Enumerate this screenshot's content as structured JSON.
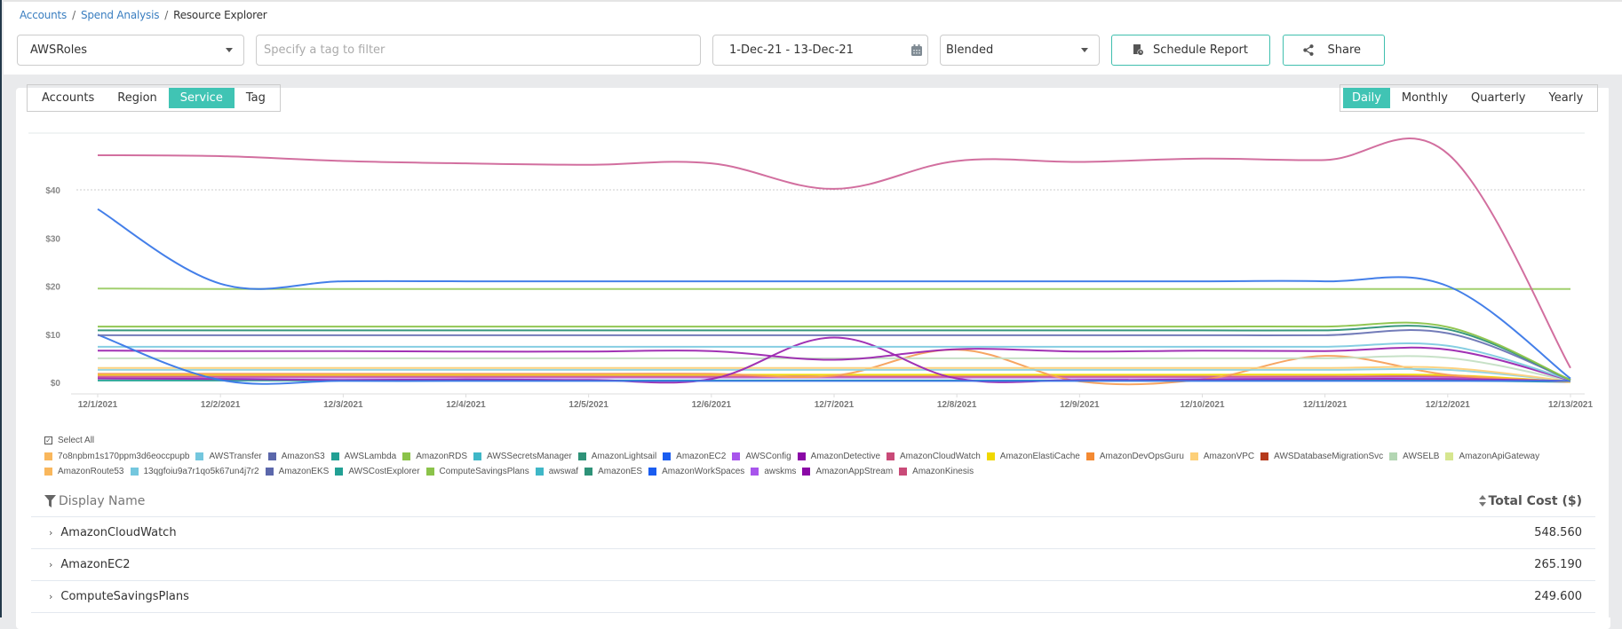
{
  "breadcrumb": {
    "items": [
      "Accounts",
      "Spend Analysis"
    ],
    "current": "Resource Explorer",
    "separator": "/"
  },
  "toolbar": {
    "role_select": "AWSRoles",
    "tag_filter_placeholder": "Specify a tag to filter",
    "date_range": "1-Dec-21 - 13-Dec-21",
    "cost_type_select": "Blended",
    "schedule_report_label": "Schedule Report",
    "share_label": "Share"
  },
  "group_by_tabs": {
    "items": [
      "Accounts",
      "Region",
      "Service",
      "Tag"
    ],
    "active": "Service"
  },
  "granularity_tabs": {
    "items": [
      "Daily",
      "Monthly",
      "Quarterly",
      "Yearly"
    ],
    "active": "Daily"
  },
  "legend": {
    "select_all_label": "Select All",
    "row1": [
      {
        "name": "7o8npbm1s170ppm3d6eoccpupb",
        "color": "#f9b75c"
      },
      {
        "name": "AWSTransfer",
        "color": "#74c7de"
      },
      {
        "name": "AmazonS3",
        "color": "#5b67ab"
      },
      {
        "name": "AWSLambda",
        "color": "#22a094"
      },
      {
        "name": "AmazonRDS",
        "color": "#8bc34a"
      },
      {
        "name": "AWSSecretsManager",
        "color": "#3fb7c7"
      },
      {
        "name": "AmazonLightsail",
        "color": "#2e9278"
      },
      {
        "name": "AmazonEC2",
        "color": "#1a5df0"
      },
      {
        "name": "AWSConfig",
        "color": "#a855ec"
      },
      {
        "name": "AmazonDetective",
        "color": "#8a08a6"
      },
      {
        "name": "AmazonCloudWatch",
        "color": "#c94a78"
      },
      {
        "name": "AmazonElastiCache",
        "color": "#f0d800"
      },
      {
        "name": "AmazonDevOpsGuru",
        "color": "#f48a32"
      },
      {
        "name": "AmazonVPC",
        "color": "#fdd079"
      },
      {
        "name": "AWSDatabaseMigrationSvc",
        "color": "#b53a1c"
      },
      {
        "name": "AWSELB",
        "color": "#b3d6b3"
      },
      {
        "name": "AmazonApiGateway",
        "color": "#d6e68f"
      }
    ],
    "row2": [
      {
        "name": "AmazonRoute53",
        "color": "#f9b75c"
      },
      {
        "name": "13qgfoiu9a7r1qo5k67un4j7r2",
        "color": "#74c7de"
      },
      {
        "name": "AmazonEKS",
        "color": "#5b67ab"
      },
      {
        "name": "AWSCostExplorer",
        "color": "#22a094"
      },
      {
        "name": "ComputeSavingsPlans",
        "color": "#8bc34a"
      },
      {
        "name": "awswaf",
        "color": "#3fb7c7"
      },
      {
        "name": "AmazonES",
        "color": "#2e9278"
      },
      {
        "name": "AmazonWorkSpaces",
        "color": "#1a5df0"
      },
      {
        "name": "awskms",
        "color": "#a855ec"
      },
      {
        "name": "AmazonAppStream",
        "color": "#8a08a6"
      },
      {
        "name": "AmazonKinesis",
        "color": "#c94a78"
      }
    ]
  },
  "table": {
    "col_name": "Display Name",
    "col_cost": "Total Cost ($)",
    "rows": [
      {
        "name": "AmazonCloudWatch",
        "cost": "548.560"
      },
      {
        "name": "AmazonEC2",
        "cost": "265.190"
      },
      {
        "name": "ComputeSavingsPlans",
        "cost": "249.600"
      }
    ]
  },
  "chart_data": {
    "type": "line",
    "title": "",
    "xlabel": "",
    "ylabel": "",
    "x": [
      "12/1/2021",
      "12/2/2021",
      "12/3/2021",
      "12/4/2021",
      "12/5/2021",
      "12/6/2021",
      "12/7/2021",
      "12/8/2021",
      "12/9/2021",
      "12/10/2021",
      "12/11/2021",
      "12/12/2021",
      "12/13/2021"
    ],
    "yticks": [
      "$0",
      "$10",
      "$20",
      "$30",
      "$40"
    ],
    "ylim": [
      -2,
      50
    ],
    "grid": "dotted line at $40 only",
    "legend_position": "bottom",
    "series": [
      {
        "name": "AmazonCloudWatch",
        "color": "#d0679a",
        "values": [
          47.2,
          47.0,
          46.0,
          45.5,
          45.2,
          45.5,
          40.2,
          46.0,
          45.8,
          46.5,
          46.2,
          47.5,
          3.0
        ]
      },
      {
        "name": "AmazonEC2",
        "color": "#3a78e8",
        "values": [
          36.0,
          20.5,
          21.0,
          21.0,
          21.0,
          21.0,
          21.0,
          21.0,
          21.0,
          21.0,
          21.0,
          20.0,
          0.8
        ]
      },
      {
        "name": "ComputeSavingsPlans",
        "color": "#9ccc65",
        "values": [
          19.5,
          19.4,
          19.4,
          19.4,
          19.4,
          19.4,
          19.4,
          19.4,
          19.4,
          19.4,
          19.4,
          19.4,
          19.4
        ]
      },
      {
        "name": "AmazonRDS",
        "color": "#8bc34a",
        "values": [
          11.6,
          11.6,
          11.6,
          11.6,
          11.6,
          11.6,
          11.6,
          11.6,
          11.6,
          11.6,
          11.6,
          11.5,
          0.5
        ]
      },
      {
        "name": "AmazonLightsail",
        "color": "#2e9278",
        "values": [
          10.8,
          10.8,
          10.8,
          10.8,
          10.8,
          10.8,
          10.8,
          10.8,
          10.8,
          10.8,
          10.8,
          11.0,
          0.5
        ]
      },
      {
        "name": "AmazonS3",
        "color": "#6b75b5",
        "values": [
          9.8,
          9.8,
          9.8,
          9.8,
          9.8,
          9.8,
          9.8,
          9.8,
          9.8,
          9.8,
          9.8,
          10.2,
          0.5
        ]
      },
      {
        "name": "AmazonWorkSpaces",
        "color": "#3a78e8",
        "values": [
          9.9,
          0.5,
          0.3,
          0.3,
          0.3,
          0.3,
          0.3,
          0.3,
          0.3,
          0.3,
          0.3,
          0.3,
          0.3
        ]
      },
      {
        "name": "AWSTransfer",
        "color": "#7fcbe0",
        "values": [
          7.4,
          7.4,
          7.4,
          7.4,
          7.4,
          7.4,
          7.4,
          7.4,
          7.4,
          7.4,
          7.4,
          7.6,
          0.5
        ]
      },
      {
        "name": "AmazonDetective",
        "color": "#9c27b0",
        "values": [
          6.6,
          6.5,
          6.5,
          6.4,
          6.4,
          6.5,
          4.7,
          6.9,
          6.4,
          6.6,
          6.5,
          6.8,
          0.4
        ]
      },
      {
        "name": "AmazonAppStream",
        "color": "#9c27b0",
        "values": [
          0.8,
          0.7,
          0.5,
          0.6,
          0.5,
          0.7,
          9.3,
          0.8,
          0.5,
          0.6,
          0.7,
          0.7,
          0.3
        ]
      },
      {
        "name": "AWSELB",
        "color": "#c4dfc4",
        "values": [
          5.0,
          5.0,
          5.0,
          5.0,
          5.0,
          5.0,
          5.0,
          5.0,
          5.0,
          5.0,
          5.0,
          5.1,
          0.3
        ]
      },
      {
        "name": "AmazonVPC",
        "color": "#fdd079",
        "values": [
          3.0,
          3.0,
          3.0,
          3.0,
          3.0,
          3.0,
          3.0,
          3.0,
          3.0,
          3.0,
          3.0,
          3.0,
          0.2
        ]
      },
      {
        "name": "awswaf",
        "color": "#8fd3e0",
        "values": [
          2.6,
          2.6,
          2.6,
          2.6,
          2.6,
          2.6,
          2.6,
          2.6,
          2.6,
          2.6,
          2.6,
          2.6,
          0.2
        ]
      },
      {
        "name": "AmazonDevOpsGuru",
        "color": "#f7a05a",
        "values": [
          1.8,
          1.8,
          1.8,
          1.8,
          1.8,
          1.8,
          1.4,
          6.8,
          0.2,
          0.6,
          5.5,
          1.6,
          0.2
        ]
      },
      {
        "name": "AmazonElastiCache",
        "color": "#f0d800",
        "values": [
          1.6,
          1.6,
          1.6,
          1.6,
          1.6,
          1.6,
          1.6,
          1.6,
          1.6,
          1.6,
          1.6,
          1.5,
          0.1
        ]
      },
      {
        "name": "AmazonKinesis",
        "color": "#d45a8a",
        "values": [
          1.2,
          1.2,
          1.2,
          1.2,
          1.2,
          1.2,
          1.2,
          1.2,
          1.2,
          1.2,
          1.2,
          1.2,
          0.1
        ]
      },
      {
        "name": "AWSConfig",
        "color": "#b572ef",
        "values": [
          1.0,
          1.0,
          1.0,
          1.0,
          1.0,
          1.0,
          1.0,
          1.0,
          1.0,
          1.0,
          1.0,
          1.0,
          0.1
        ]
      },
      {
        "name": "AWSLambda",
        "color": "#22a094",
        "values": [
          0.4,
          0.4,
          0.4,
          0.4,
          0.4,
          0.4,
          0.4,
          0.4,
          0.4,
          0.4,
          0.4,
          0.4,
          0.1
        ]
      }
    ]
  }
}
